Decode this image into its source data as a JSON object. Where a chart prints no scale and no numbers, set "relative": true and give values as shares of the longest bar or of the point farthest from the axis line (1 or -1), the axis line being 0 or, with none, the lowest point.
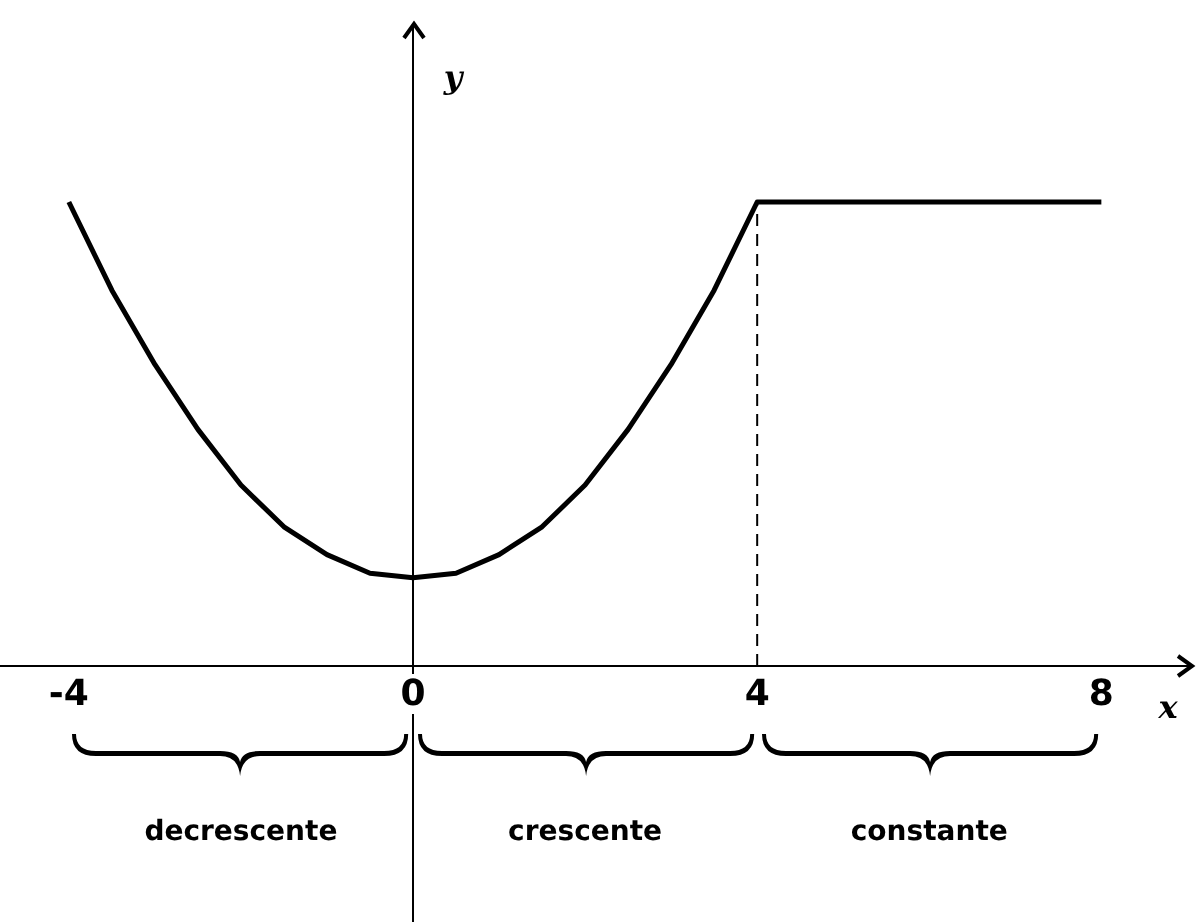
{
  "chart_data": {
    "type": "line",
    "xlabel": "x",
    "ylabel": "y",
    "relative": true,
    "x": [
      -4,
      -3.5,
      -3,
      -2.5,
      -2,
      -1.5,
      -1,
      -0.5,
      0,
      0.5,
      1,
      1.5,
      2,
      2.5,
      3,
      3.5,
      4,
      8
    ],
    "series": [
      {
        "color": "#000000",
        "values": [
          1,
          0.81,
          0.65,
          0.51,
          0.39,
          0.3,
          0.24,
          0.2,
          0.19,
          0.2,
          0.24,
          0.3,
          0.39,
          0.51,
          0.65,
          0.81,
          1,
          1
        ]
      }
    ],
    "xlim": [
      -4.8,
      9.1
    ],
    "xticks": [
      -4,
      0,
      4,
      8
    ],
    "grid": false,
    "legend": false,
    "marker": "none",
    "line_style": "solid",
    "ref_lines": [
      {
        "axis": "x",
        "value": 4,
        "line_style": "dashed",
        "color": "#000000"
      }
    ],
    "annotations": [
      "decrescente",
      "crescente",
      "constante"
    ]
  }
}
